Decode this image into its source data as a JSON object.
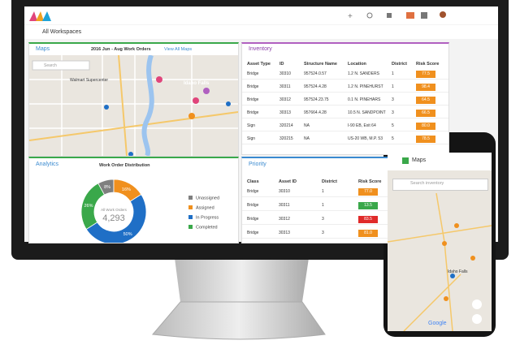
{
  "header": {
    "workspace": "All Workspaces"
  },
  "maps": {
    "title": "Maps",
    "filter": "2016 Jun - Aug Work Orders",
    "link": "View All Maps",
    "search": "Search",
    "places": [
      "Walmart Supercenter",
      "Idaho Falls"
    ]
  },
  "inventory": {
    "title": "Inventory",
    "columns": [
      "Asset Type",
      "ID",
      "Structure Name",
      "Location",
      "District",
      "Risk Score"
    ],
    "rows": [
      [
        "Bridge",
        "30310",
        "957524.0.57",
        "1.2 N. SANDERS",
        "1",
        "77.5"
      ],
      [
        "Bridge",
        "30311",
        "957524.4.28",
        "1.2 N. PINEHURST",
        "1",
        "98.4"
      ],
      [
        "Bridge",
        "30312",
        "957524.23.75",
        "0.1 N. PINEHARS",
        "3",
        "64.5"
      ],
      [
        "Bridge",
        "30313",
        "957664.4.28",
        "10.5 N. SANDPOINT",
        "3",
        "66.5"
      ],
      [
        "Sign",
        "320214",
        "NA",
        "I-90 EB, Exit 64",
        "5",
        "80.0"
      ],
      [
        "Sign",
        "320215",
        "NA",
        "US-20 WB, M.P. 53",
        "5",
        "78.5"
      ]
    ],
    "risk_colors": [
      "#f0901e",
      "#f0901e",
      "#f0901e",
      "#f0901e",
      "#f0901e",
      "#f0901e"
    ]
  },
  "analytics": {
    "title": "Analytics",
    "chart_title": "Work Order Distribution",
    "center_label": "All Work Orders",
    "center_value": "4,293",
    "names": [
      "Unassigned",
      "Assigned",
      "In Progress",
      "Completed"
    ],
    "colors": [
      "#7f7f7f",
      "#f0901e",
      "#1f6fc6",
      "#3aa84a"
    ],
    "values": [
      8,
      16,
      50,
      26
    ],
    "value_labels": [
      "8%",
      "16%",
      "50%",
      "26%"
    ]
  },
  "priority": {
    "title": "Priority",
    "columns": [
      "Class",
      "Asset ID",
      "District",
      "Risk Score"
    ],
    "rows": [
      [
        "Bridge",
        "30310",
        "1",
        "77.0"
      ],
      [
        "Bridge",
        "30311",
        "1",
        "13.5"
      ],
      [
        "Bridge",
        "30312",
        "3",
        "83.5"
      ],
      [
        "Bridge",
        "30313",
        "3",
        "81.0"
      ]
    ],
    "risk_colors": [
      "#f0901e",
      "#3aa84a",
      "#e02a2a",
      "#f0901e"
    ]
  },
  "phone": {
    "title": "Maps",
    "search": "Search inventory",
    "place": "Idaho Falls",
    "brand": "Google"
  }
}
